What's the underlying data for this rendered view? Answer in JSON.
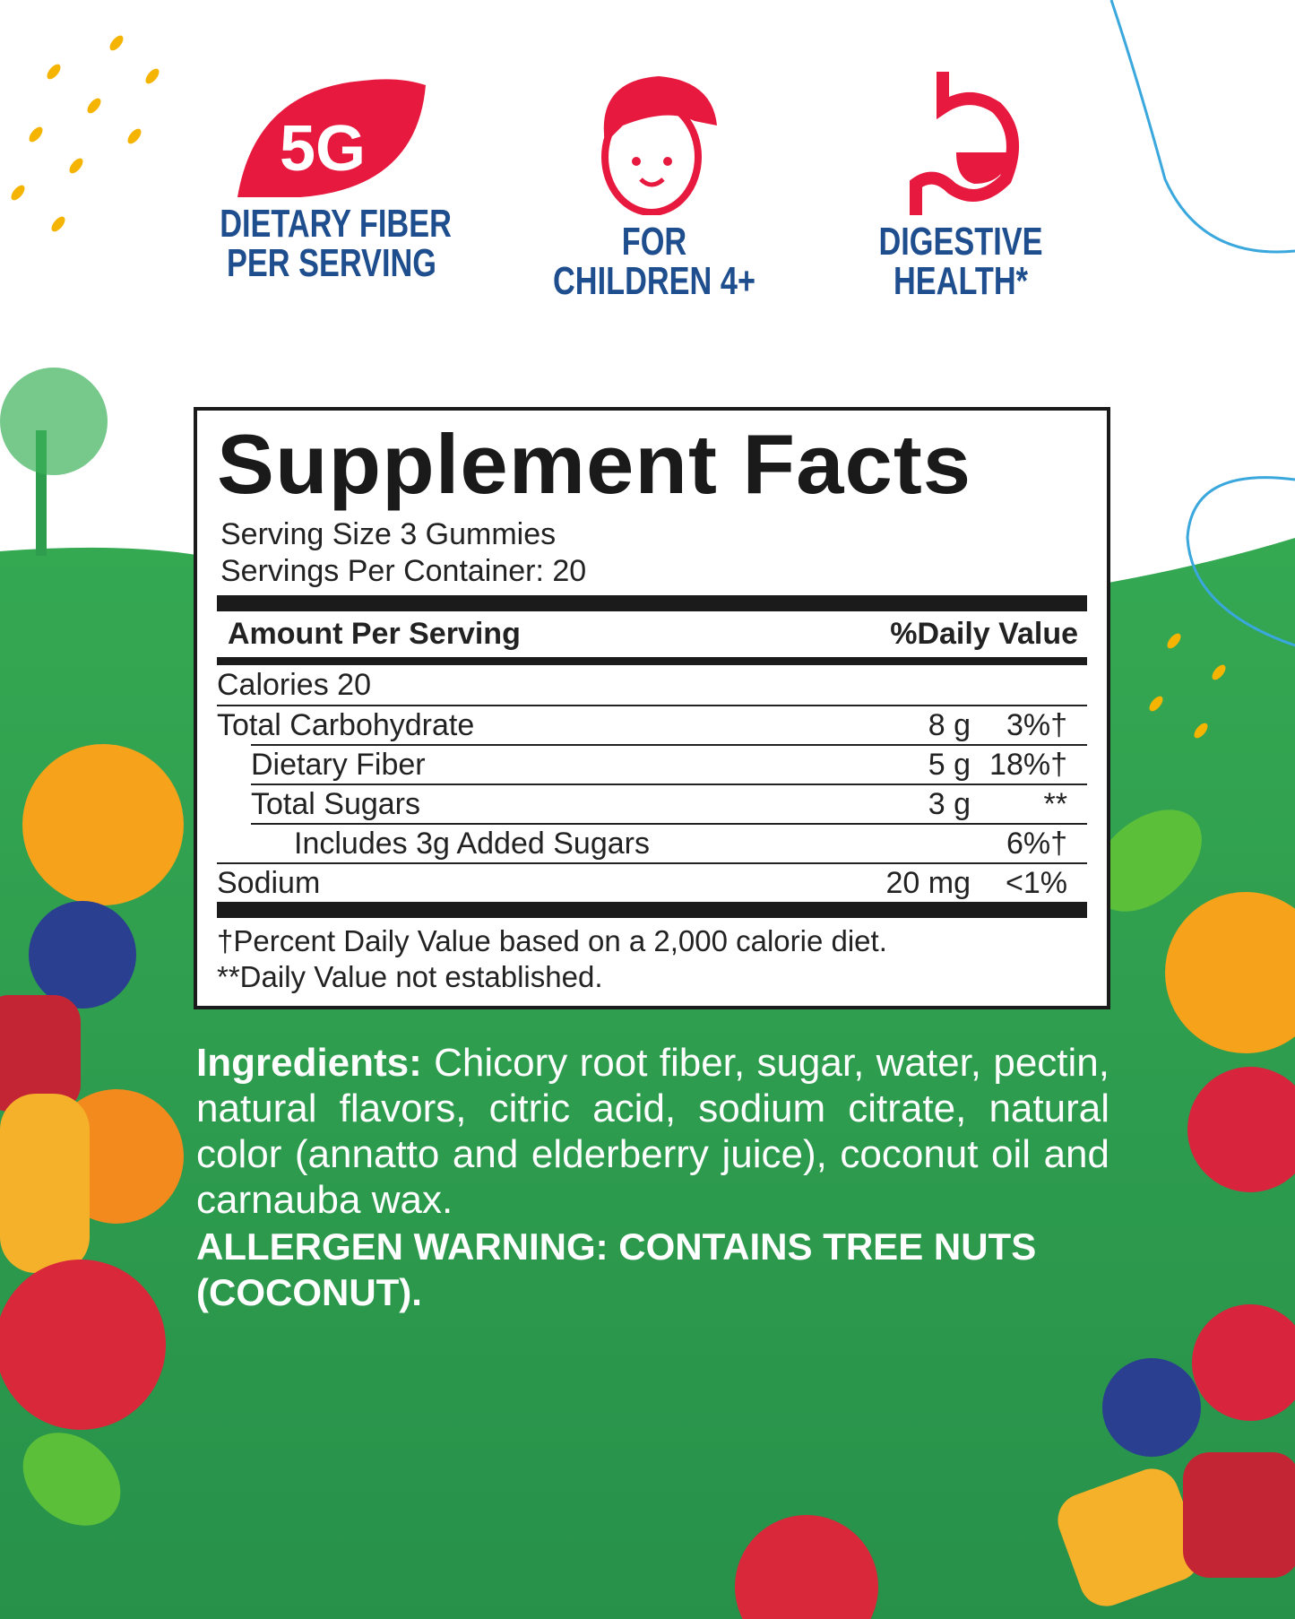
{
  "colors": {
    "green": "#2e9e4e",
    "red": "#e8193f",
    "blue": "#1f4e8f"
  },
  "badges": [
    {
      "icon": "leaf-5g-icon",
      "icon_text": "5G",
      "line1": "DIETARY FIBER",
      "line2": "PER SERVING"
    },
    {
      "icon": "child-face-icon",
      "line1": "FOR",
      "line2": "CHILDREN 4+"
    },
    {
      "icon": "stomach-icon",
      "line1": "DIGESTIVE",
      "line2": "HEALTH*"
    }
  ],
  "facts": {
    "title": "Supplement Facts",
    "serving_size": "Serving Size 3 Gummies",
    "servings_per_container": "Servings Per Container: 20",
    "amount_header": "Amount Per Serving",
    "dv_header": "%Daily Value",
    "calories": "Calories  20",
    "rows": [
      {
        "name": "Total Carbohydrate",
        "amount": "8 g",
        "dv": "3%†"
      },
      {
        "name": "Dietary Fiber",
        "amount": "5 g",
        "dv": "18%†"
      },
      {
        "name": "Total Sugars",
        "amount": "3 g",
        "dv": "**"
      },
      {
        "name": "Includes 3g Added Sugars",
        "amount": "",
        "dv": "6%†"
      },
      {
        "name": "Sodium",
        "amount": "20 mg",
        "dv": "<1%"
      }
    ],
    "footnote1": "†Percent Daily Value based on a 2,000 calorie diet.",
    "footnote2": "**Daily Value not established."
  },
  "ingredients": {
    "label": "Ingredients:",
    "text": " Chicory root fiber, sugar, water, pectin, natural flavors, citric acid, sodium citrate, natural color (annatto and elderberry juice), coconut oil and carnauba wax."
  },
  "allergen": "ALLERGEN WARNING: CONTAINS TREE NUTS (COCONUT)."
}
